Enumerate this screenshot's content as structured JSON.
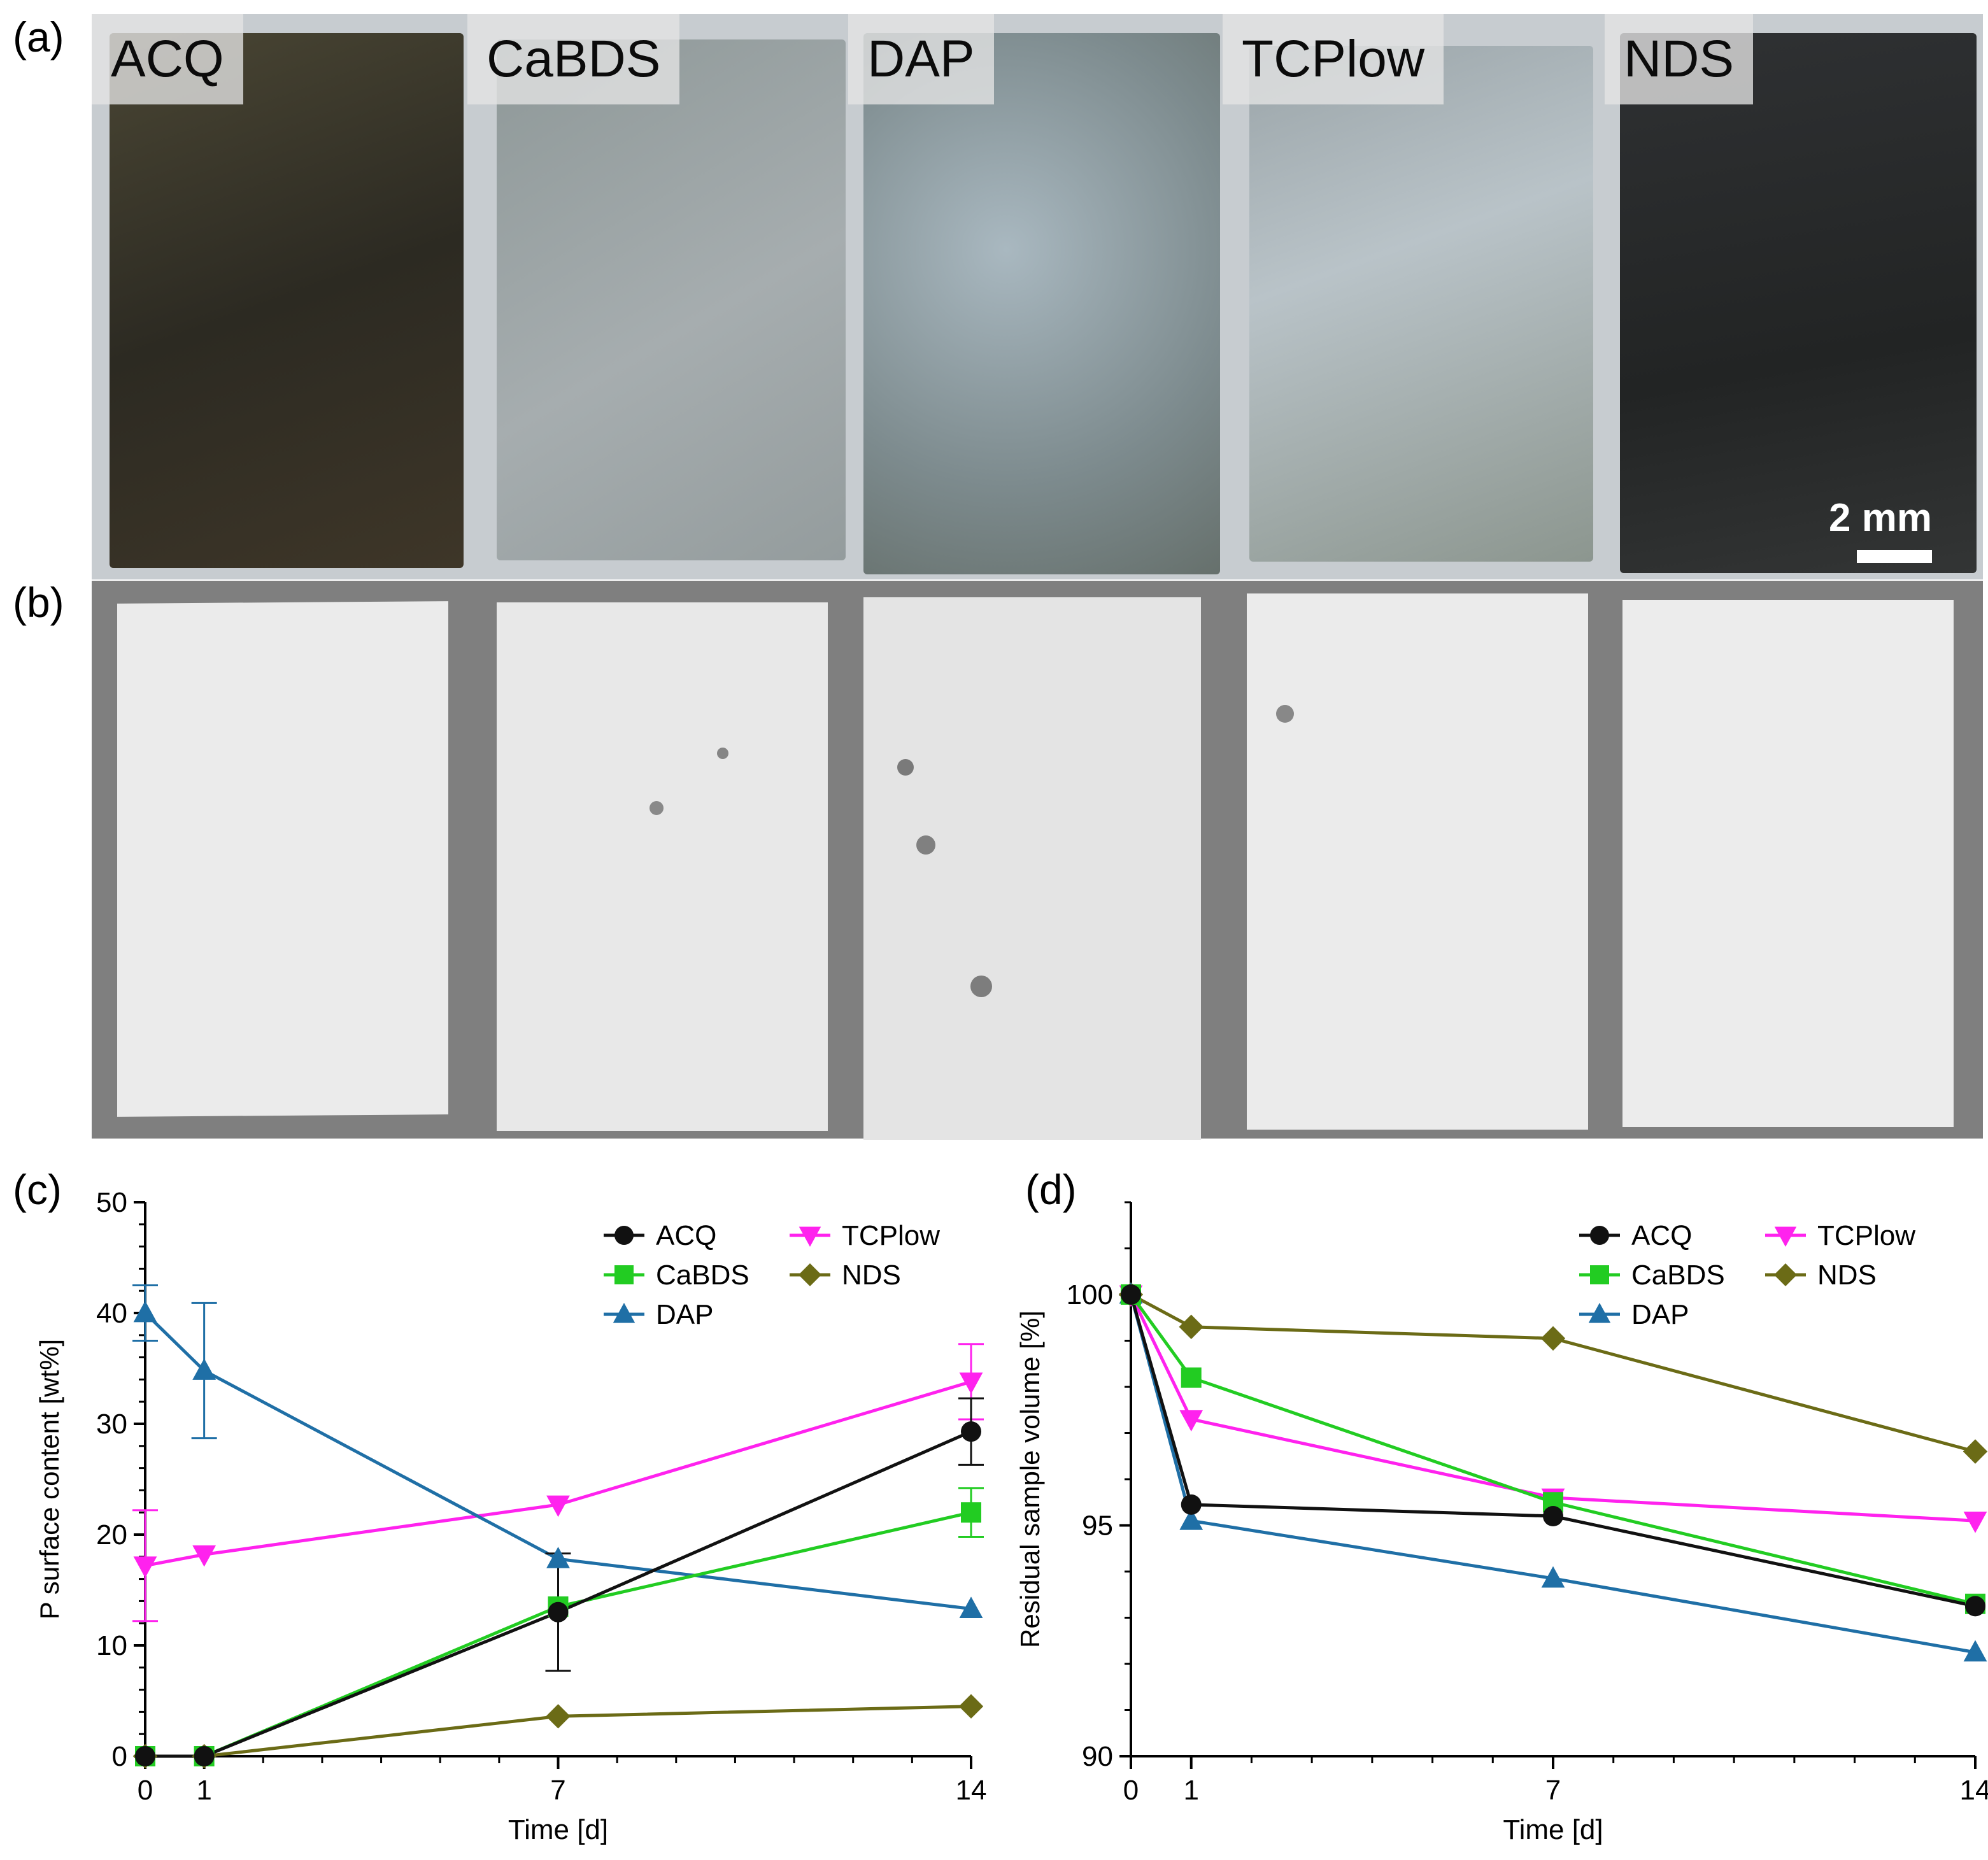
{
  "panel_labels": {
    "a": "(a)",
    "b": "(b)",
    "c": "(c)",
    "d": "(d)"
  },
  "photo_labels": [
    "ACQ",
    "CaBDS",
    "DAP",
    "TCPlow",
    "NDS"
  ],
  "scale_bar": "2 mm",
  "colors": {
    "ACQ": "#111111",
    "CaBDS": "#22cc22",
    "DAP": "#1f6fa6",
    "TCPlow": "#ff22ee",
    "NDS": "#6b6b16"
  },
  "chart_data": [
    {
      "type": "line",
      "panel": "(c)",
      "xlabel": "Time [d]",
      "ylabel": "P surface content [wt%]",
      "xlim": [
        0,
        14
      ],
      "ylim": [
        0,
        50
      ],
      "xticks": [
        0,
        1,
        7,
        14
      ],
      "yticks": [
        0,
        10,
        20,
        30,
        40,
        50
      ],
      "x": [
        0,
        1,
        7,
        14
      ],
      "legend": {
        "position": "top-right",
        "order": [
          "ACQ",
          "CaBDS",
          "DAP",
          "TCPlow",
          "NDS"
        ]
      },
      "series": [
        {
          "name": "ACQ",
          "marker": "circle",
          "values": [
            0,
            0,
            13.0,
            29.3
          ],
          "errors": [
            0,
            0,
            5.3,
            3.0
          ]
        },
        {
          "name": "CaBDS",
          "marker": "square",
          "values": [
            0,
            0,
            13.5,
            22.0
          ],
          "errors": [
            0,
            0,
            0,
            2.2
          ]
        },
        {
          "name": "DAP",
          "marker": "triangle-up",
          "values": [
            40.0,
            34.8,
            17.8,
            13.3
          ],
          "errors": [
            2.5,
            6.1,
            0,
            0
          ]
        },
        {
          "name": "TCPlow",
          "marker": "triangle-down",
          "values": [
            17.2,
            18.2,
            22.7,
            33.8
          ],
          "errors": [
            5.0,
            0,
            0,
            3.4
          ]
        },
        {
          "name": "NDS",
          "marker": "diamond",
          "values": [
            0,
            0,
            3.6,
            4.5
          ],
          "errors": [
            0,
            0,
            0,
            0
          ]
        }
      ]
    },
    {
      "type": "line",
      "panel": "(d)",
      "xlabel": "Time [d]",
      "ylabel": "Residual sample volume [%]",
      "xlim": [
        0,
        14
      ],
      "ylim": [
        90,
        102
      ],
      "xticks": [
        0,
        1,
        7,
        14
      ],
      "yticks": [
        90,
        95,
        100
      ],
      "x": [
        0,
        1,
        7,
        14
      ],
      "legend": {
        "position": "top-right",
        "order": [
          "ACQ",
          "CaBDS",
          "DAP",
          "TCPlow",
          "NDS"
        ]
      },
      "series": [
        {
          "name": "ACQ",
          "marker": "circle",
          "values": [
            100,
            95.45,
            95.2,
            93.25
          ]
        },
        {
          "name": "CaBDS",
          "marker": "square",
          "values": [
            100,
            98.2,
            95.5,
            93.3
          ]
        },
        {
          "name": "DAP",
          "marker": "triangle-up",
          "values": [
            100,
            95.1,
            93.85,
            92.25
          ]
        },
        {
          "name": "TCPlow",
          "marker": "triangle-down",
          "values": [
            100,
            97.3,
            95.6,
            95.1
          ]
        },
        {
          "name": "NDS",
          "marker": "diamond",
          "values": [
            100,
            99.3,
            99.05,
            96.6
          ]
        }
      ]
    }
  ]
}
